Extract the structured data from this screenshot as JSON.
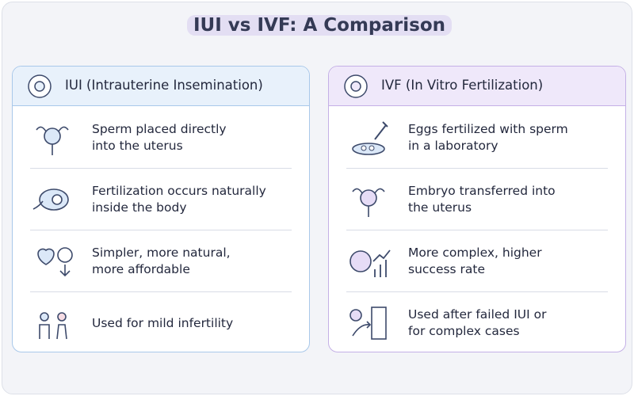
{
  "title": "IUI vs IVF: A Comparison",
  "columns": [
    {
      "heading": "IUI (Intrauterine Insemination)",
      "items": [
        {
          "lines": [
            "Sperm placed directly",
            "into the uterus"
          ]
        },
        {
          "lines": [
            "Fertilization occurs naturally",
            "inside the body"
          ]
        },
        {
          "lines": [
            "Simpler, more natural,",
            "more affordable"
          ]
        },
        {
          "lines": [
            "Used for mild infertility"
          ]
        }
      ]
    },
    {
      "heading": "IVF (In Vitro Fertilization)",
      "items": [
        {
          "lines": [
            "Eggs fertilized with sperm",
            "in a laboratory"
          ]
        },
        {
          "lines": [
            "Embryo transferred into",
            "the uterus"
          ]
        },
        {
          "lines": [
            "More complex, higher",
            "success rate"
          ]
        },
        {
          "lines": [
            "Used after failed IUI or",
            "for complex cases"
          ]
        }
      ]
    }
  ]
}
